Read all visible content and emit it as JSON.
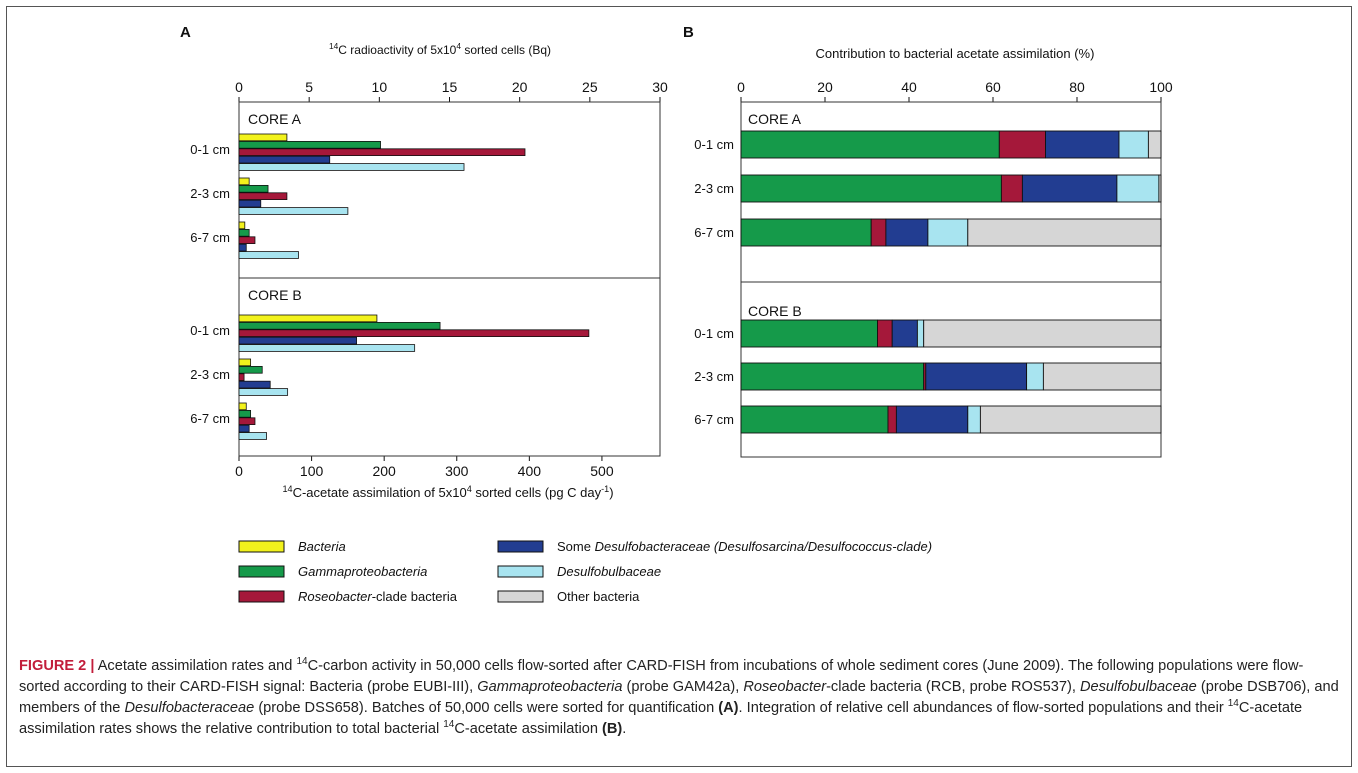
{
  "chart_data": [
    {
      "type": "bar",
      "orientation": "horizontal",
      "panel_label": "A",
      "top_axis": {
        "label_sup": "14",
        "label_main": "C radioactivity of 5x10",
        "label_sup2": "4",
        "label_tail": " sorted cells (Bq)",
        "ticks": [
          0,
          5,
          10,
          15,
          20,
          25,
          30
        ],
        "range": [
          0,
          30
        ]
      },
      "bottom_axis": {
        "label_sup": "14",
        "label_main": "C-acetate assimilation of 5x10",
        "label_sup2": "4",
        "label_tail": " sorted cells (pg C day",
        "label_sup3": "-1",
        "label_end": ")",
        "ticks": [
          0,
          100,
          200,
          300,
          400,
          500
        ],
        "range": [
          0,
          580
        ]
      },
      "cores": [
        {
          "name": "CORE A",
          "groups": [
            {
              "depth": "0-1 cm",
              "values": [
                66,
                195,
                394,
                125,
                310
              ]
            },
            {
              "depth": "2-3 cm",
              "values": [
                14,
                40,
                66,
                30,
                150
              ]
            },
            {
              "depth": "6-7 cm",
              "values": [
                8,
                14,
                22,
                10,
                82
              ]
            }
          ]
        },
        {
          "name": "CORE B",
          "groups": [
            {
              "depth": "0-1 cm",
              "values": [
                190,
                277,
                482,
                162,
                242
              ]
            },
            {
              "depth": "2-3 cm",
              "values": [
                16,
                32,
                7,
                43,
                67
              ]
            },
            {
              "depth": "6-7 cm",
              "values": [
                10,
                16,
                22,
                14,
                38
              ]
            }
          ]
        }
      ],
      "series": [
        "Bacteria",
        "Gammaproteobacteria",
        "Roseobacter-clade bacteria",
        "Some Desulfobacteraceae (Desulfosarcina/Desulfococcus-clade)",
        "Desulfobulbaceae"
      ]
    },
    {
      "type": "bar",
      "orientation": "horizontal",
      "stacked": true,
      "panel_label": "B",
      "top_axis": {
        "label": "Contribution to bacterial acetate assimilation (%)",
        "ticks": [
          0,
          20,
          40,
          60,
          80,
          100
        ],
        "range": [
          0,
          100
        ]
      },
      "cores": [
        {
          "name": "CORE A",
          "groups": [
            {
              "depth": "0-1 cm",
              "values": [
                61.5,
                11.0,
                17.5,
                7.0,
                3.0
              ]
            },
            {
              "depth": "2-3 cm",
              "values": [
                62.0,
                5.0,
                22.5,
                10.0,
                0.5
              ]
            },
            {
              "depth": "6-7 cm",
              "values": [
                31.0,
                3.5,
                10.0,
                9.5,
                46.0
              ]
            }
          ]
        },
        {
          "name": "CORE B",
          "groups": [
            {
              "depth": "0-1 cm",
              "values": [
                32.5,
                3.5,
                6.0,
                1.5,
                56.5
              ]
            },
            {
              "depth": "2-3 cm",
              "values": [
                43.5,
                0.5,
                24.0,
                4.0,
                28.0
              ]
            },
            {
              "depth": "6-7 cm",
              "values": [
                35.0,
                2.0,
                17.0,
                3.0,
                43.0
              ]
            }
          ]
        }
      ],
      "series": [
        "Gammaproteobacteria",
        "Roseobacter-clade bacteria",
        "Some Desulfobacteraceae (Desulfosarcina/Desulfococcus-clade)",
        "Desulfobulbaceae",
        "Other bacteria"
      ]
    }
  ],
  "colors": {
    "Bacteria": "#f2f21c",
    "Gammaproteobacteria": "#159a4a",
    "Roseobacter": "#a5183a",
    "Desulfobacteraceae": "#223d91",
    "Desulfobulbaceae": "#a8e4f0",
    "Other": "#d6d6d6"
  },
  "legend": [
    {
      "key": "Bacteria",
      "label_italic": "Bacteria",
      "label_rest": ""
    },
    {
      "key": "Gammaproteobacteria",
      "label_italic": "Gammaproteobacteria",
      "label_rest": ""
    },
    {
      "key": "Roseobacter",
      "label_italic": "Roseobacter",
      "label_rest": "-clade bacteria"
    },
    {
      "key": "Desulfobacteraceae",
      "label_plain": "Some ",
      "label_italic": "Desulfobacteraceae (Desulfosarcina/Desulfococcus-clade)",
      "label_rest": ""
    },
    {
      "key": "Desulfobulbaceae",
      "label_italic": "Desulfobulbaceae",
      "label_rest": ""
    },
    {
      "key": "Other",
      "label_italic": "",
      "label_rest": "Other bacteria"
    }
  ],
  "caption": {
    "label": "FIGURE 2 |",
    "t1": " Acetate assimilation rates and ",
    "sup1": "14",
    "t2": "C-carbon activity in 50,000 cells flow-sorted after CARD-FISH from incubations of whole sediment cores (June 2009). The following populations were flow-sorted according to their CARD-FISH signal: Bacteria (probe EUBI-III), ",
    "i1": "Gammaproteobacteria",
    "t3": " (probe GAM42a), ",
    "i2": "Roseobacter",
    "t4": "-clade bacteria (RCB, probe ROS537), ",
    "i3": "Desulfobulbaceae",
    "t5": " (probe DSB706), and members of the ",
    "i4": "Desulfobacteraceae",
    "t6": " (probe DSS658). Batches of 50,000 cells were sorted for quantification ",
    "b1": "(A)",
    "t7": ". Integration of relative cell abundances of flow-sorted populations and their ",
    "sup2": "14",
    "t8": "C-acetate assimilation rates shows the relative contribution to total bacterial ",
    "sup3": "14",
    "t9": "C-acetate assimilation ",
    "b2": "(B)",
    "t10": "."
  }
}
